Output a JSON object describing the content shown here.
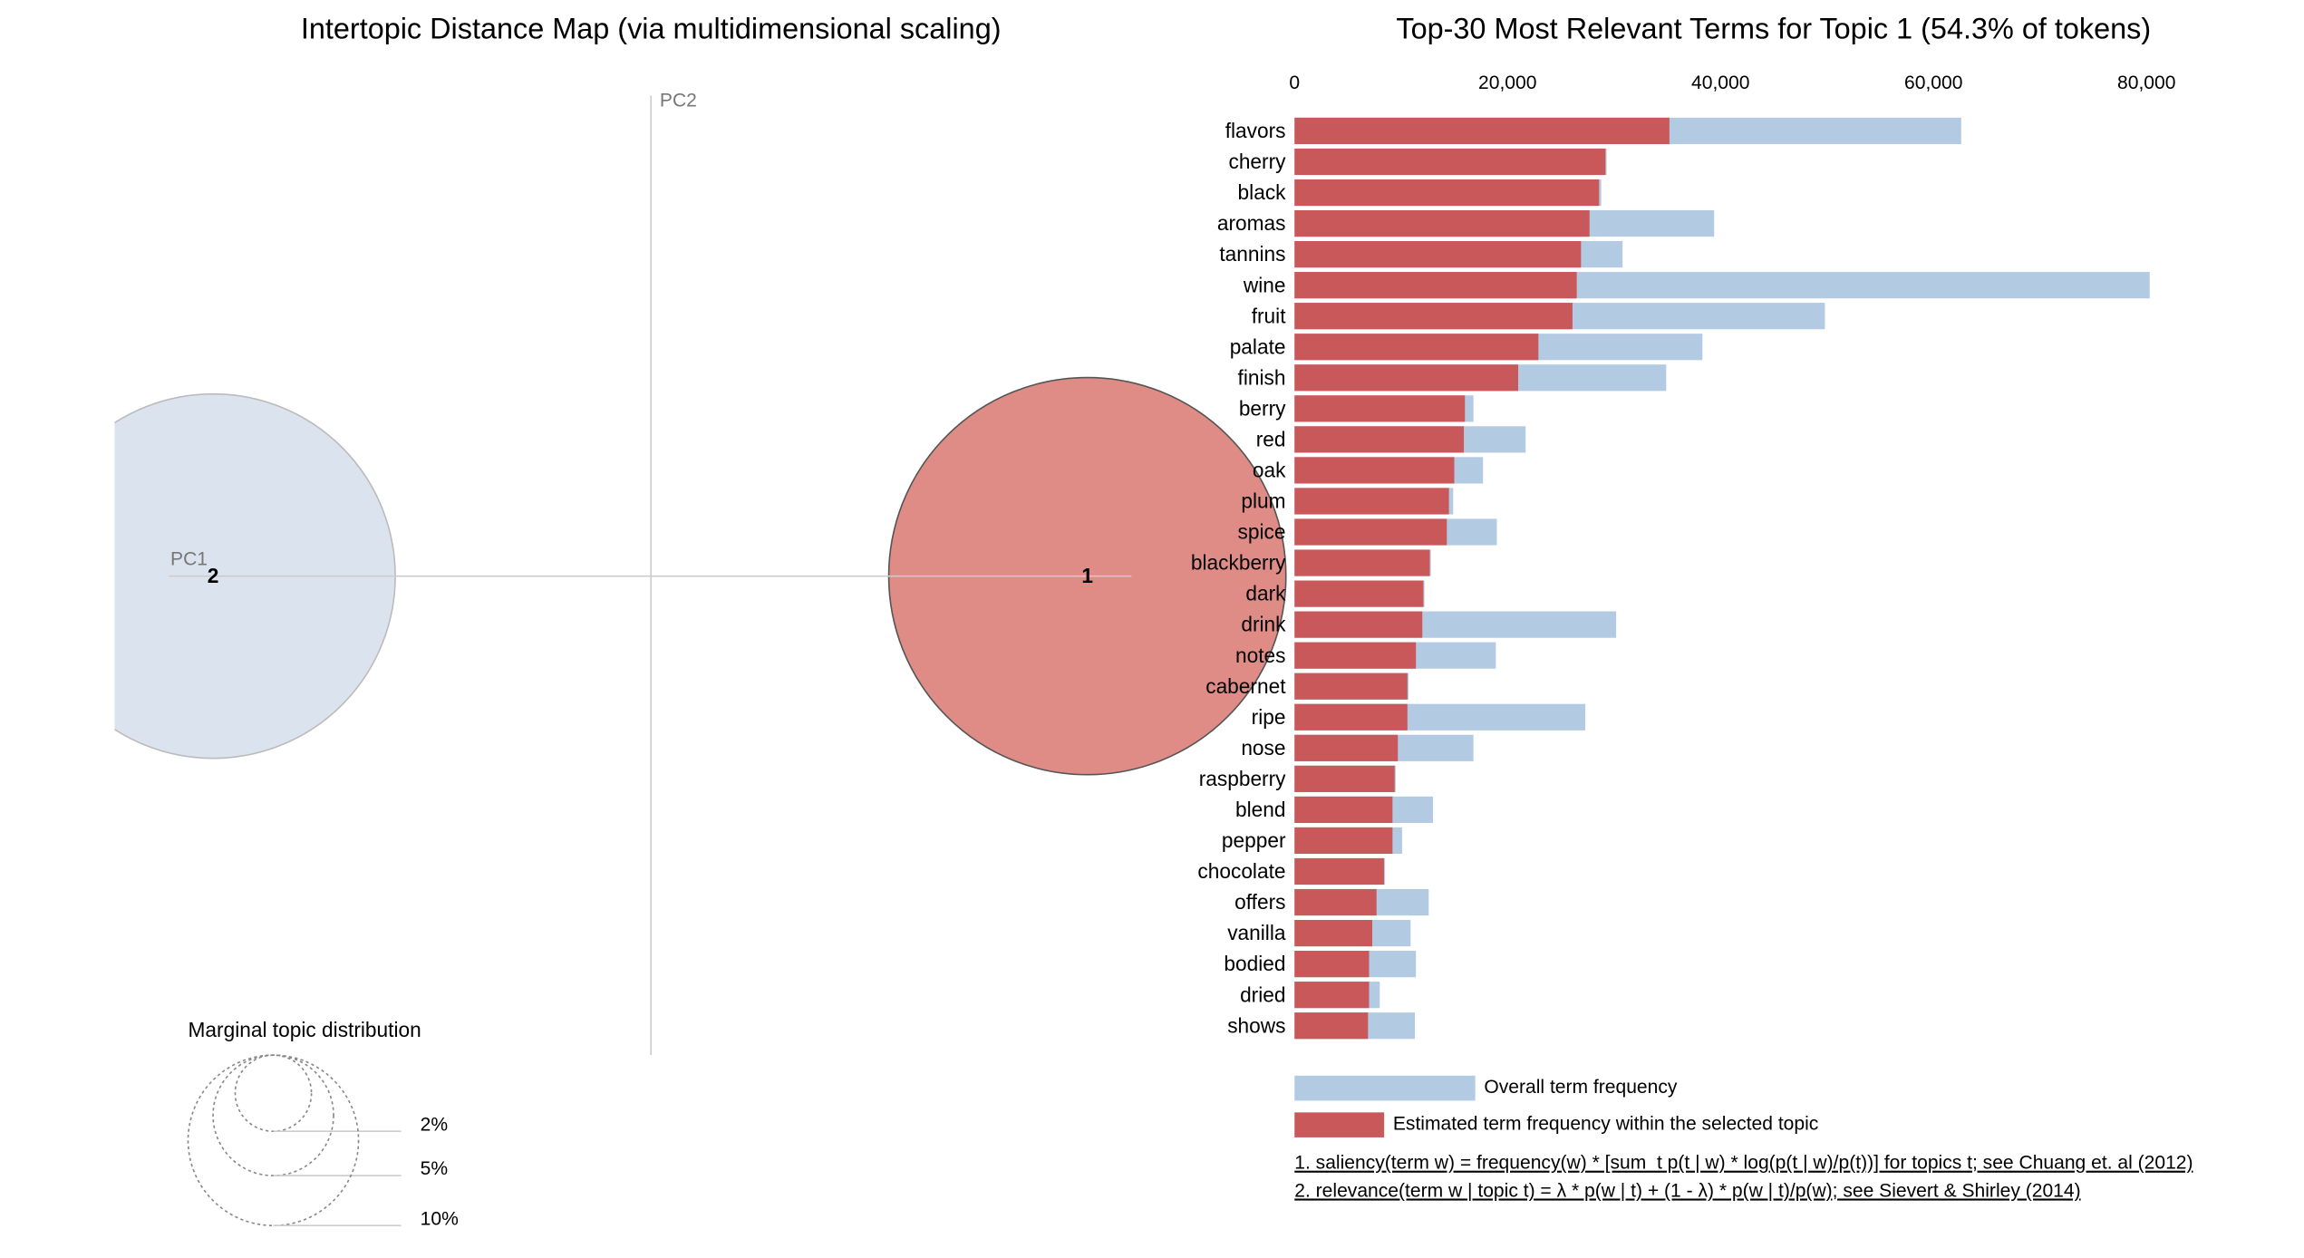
{
  "chart_data": [
    {
      "type": "bubble",
      "title": "Intertopic Distance Map (via multidimensional scaling)",
      "x_label": "PC1",
      "y_label": "PC2",
      "topics": [
        {
          "name": "1",
          "size": 54.3,
          "color": "#dd867f"
        },
        {
          "name": "2",
          "size": 45.7,
          "color": "#d9e2ed"
        }
      ],
      "size_legend": {
        "title": "Marginal topic distribution",
        "ticks": [
          {
            "value": 2,
            "label": "2%"
          },
          {
            "value": 5,
            "label": "5%"
          },
          {
            "value": 10,
            "label": "10%"
          }
        ]
      }
    },
    {
      "type": "bar",
      "title": "Top-30 Most Relevant Terms for Topic 1 (54.3% of tokens)",
      "categories": [
        "flavors",
        "cherry",
        "black",
        "aromas",
        "tannins",
        "wine",
        "fruit",
        "palate",
        "finish",
        "berry",
        "red",
        "oak",
        "plum",
        "spice",
        "blackberry",
        "dark",
        "drink",
        "notes",
        "cabernet",
        "ripe",
        "nose",
        "raspberry",
        "blend",
        "pepper",
        "chocolate",
        "offers",
        "vanilla",
        "bodied",
        "dried",
        "shows"
      ],
      "series": [
        {
          "name": "Overall term frequency",
          "color": "#b3cbe2",
          "values": [
            62600,
            29300,
            28800,
            39400,
            30800,
            80300,
            49800,
            38300,
            34900,
            16800,
            21700,
            17700,
            14900,
            19000,
            12800,
            12200,
            30200,
            18900,
            10700,
            27300,
            16800,
            9500,
            13000,
            10100,
            8500,
            12600,
            10900,
            11400,
            8000,
            11300
          ]
        },
        {
          "name": "Estimated term frequency within the selected topic",
          "color": "#c9585a",
          "values": [
            35200,
            29200,
            28600,
            27700,
            26900,
            26500,
            26100,
            22900,
            21000,
            16000,
            15900,
            15000,
            14500,
            14300,
            12700,
            12100,
            12000,
            11400,
            10600,
            10600,
            9700,
            9400,
            9200,
            9200,
            8400,
            7700,
            7300,
            7000,
            7000,
            6900
          ]
        }
      ],
      "xlim": [
        0,
        80300
      ],
      "xticks": [
        0,
        {
          "value": 20000,
          "label": "20,000"
        },
        {
          "value": 40000,
          "label": "40,000"
        },
        {
          "value": 60000,
          "label": "60,000"
        },
        {
          "value": 80000,
          "label": "80,000"
        }
      ],
      "notes": [
        "1. saliency(term w) = frequency(w) * [sum_t p(t | w) * log(p(t | w)/p(t))] for topics t; see Chuang et. al (2012)",
        "2. relevance(term w | topic t) = λ * p(w | t) + (1 - λ) * p(w | t)/p(w); see Sievert & Shirley (2014)"
      ]
    }
  ]
}
